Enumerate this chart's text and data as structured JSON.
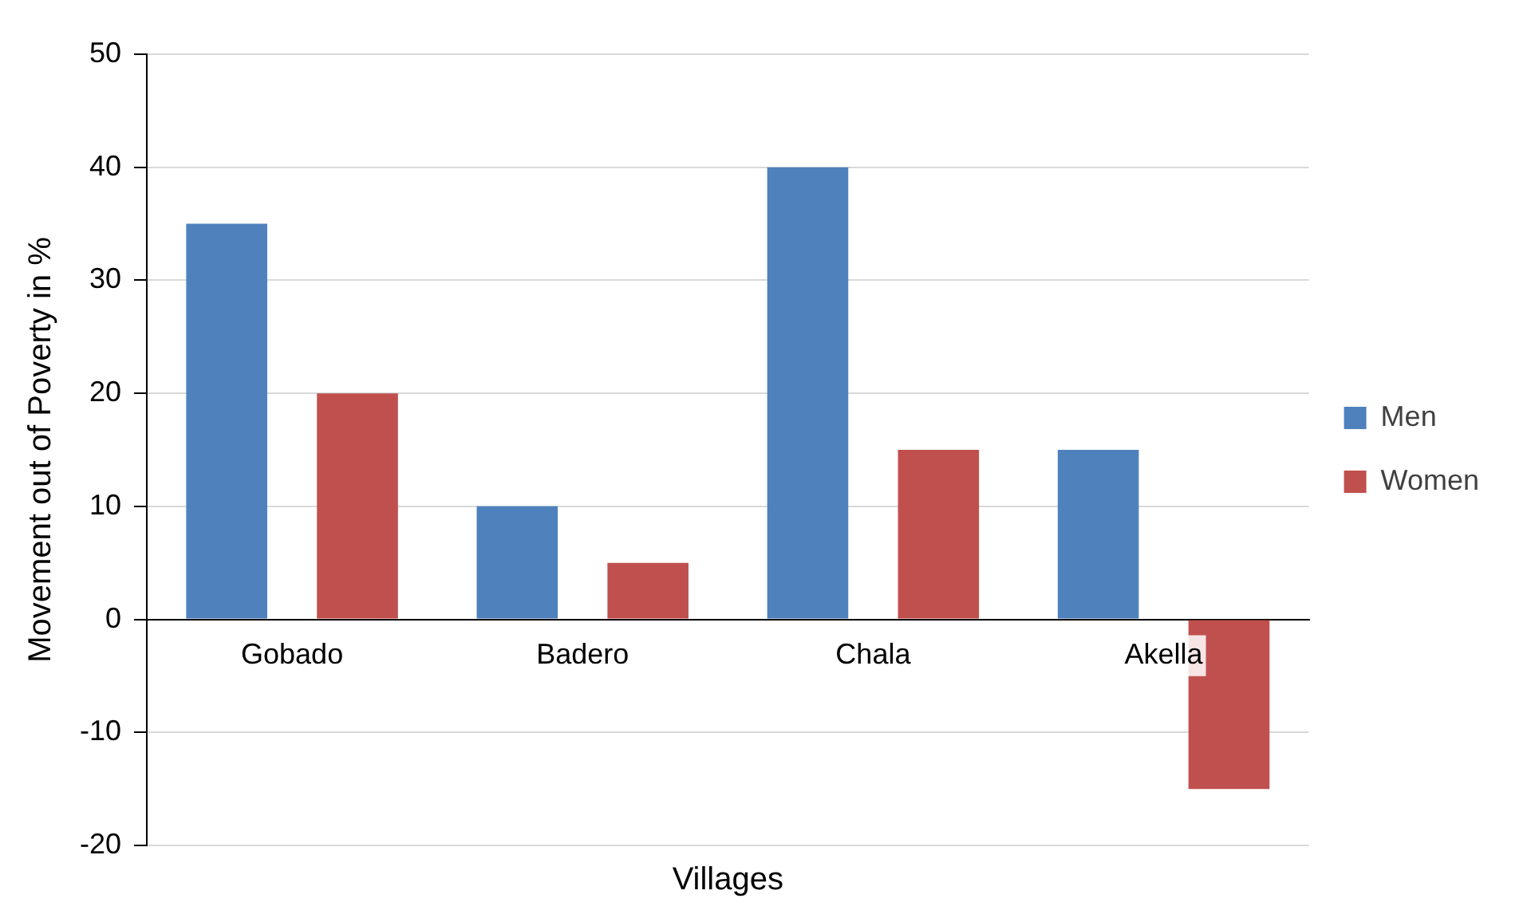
{
  "chart_data": {
    "type": "bar",
    "xlabel": "Villages",
    "ylabel": "Movement out of Poverty in %",
    "categories": [
      "Gobado",
      "Badero",
      "Chala",
      "Akella"
    ],
    "series": [
      {
        "name": "Men",
        "color": "#4f81bd",
        "values": [
          35,
          10,
          40,
          15
        ]
      },
      {
        "name": "Women",
        "color": "#c0504d",
        "values": [
          20,
          5,
          15,
          -15
        ]
      }
    ],
    "ylim": [
      -20,
      50
    ],
    "yticks": [
      -20,
      -10,
      0,
      10,
      20,
      30,
      40,
      50
    ],
    "grid": "y",
    "legend": "right"
  }
}
